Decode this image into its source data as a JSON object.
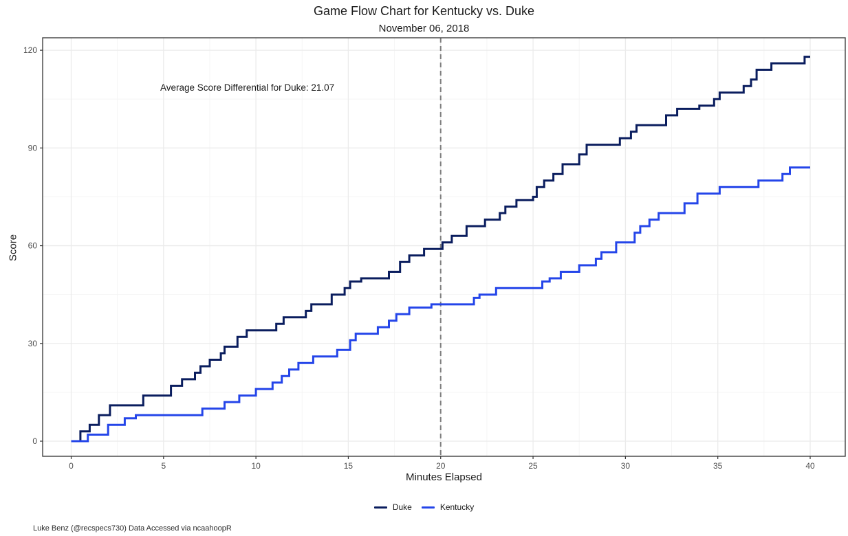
{
  "caption": "Luke Benz (@recspecs730) Data Accessed via ncaahoopR",
  "chart_data": {
    "type": "line",
    "subtype": "step",
    "title": "Game Flow Chart for Kentucky vs. Duke",
    "subtitle": "November 06, 2018",
    "xlabel": "Minutes Elapsed",
    "ylabel": "Score",
    "xlim": [
      0,
      40
    ],
    "ylim": [
      0,
      120
    ],
    "x_end": 40,
    "grid": "on",
    "legend_position": "bottom",
    "axes": {
      "x_major": [
        0,
        5,
        10,
        15,
        20,
        25,
        30,
        35,
        40
      ],
      "x_minor": [
        2.5,
        7.5,
        12.5,
        17.5,
        22.5,
        27.5,
        32.5,
        37.5
      ],
      "y_major": [
        0,
        30,
        60,
        90,
        120
      ],
      "y_minor": [
        15,
        45,
        75,
        105
      ]
    },
    "halftime_line": {
      "x": 20,
      "style": "dashed"
    },
    "annotation": {
      "text": "Average Score Differential for Duke: 21.07"
    },
    "colors": {
      "duke": "#0A1D5E",
      "kentucky": "#2445E9",
      "grid_major": "#EBEBEB",
      "grid_minor": "#F5F5F5",
      "panel_border": "#404040",
      "tick": "#333333",
      "tick_label": "#4D4D4D",
      "halftime_dash": "#7F7F7F",
      "background": "#FFFFFF"
    },
    "series": [
      {
        "name": "Duke",
        "color": "#0A1D5E",
        "final_score": 118,
        "halftime_score": 59,
        "points": [
          [
            0,
            0
          ],
          [
            0.5,
            3
          ],
          [
            1.0,
            5
          ],
          [
            1.5,
            8
          ],
          [
            2.1,
            11
          ],
          [
            3.9,
            14
          ],
          [
            5.4,
            17
          ],
          [
            6.0,
            19
          ],
          [
            6.7,
            21
          ],
          [
            7.0,
            23
          ],
          [
            7.5,
            25
          ],
          [
            8.1,
            27
          ],
          [
            8.3,
            29
          ],
          [
            9.0,
            32
          ],
          [
            9.5,
            34
          ],
          [
            11.1,
            36
          ],
          [
            11.5,
            38
          ],
          [
            12.7,
            40
          ],
          [
            13.0,
            42
          ],
          [
            14.1,
            45
          ],
          [
            14.8,
            47
          ],
          [
            15.1,
            49
          ],
          [
            15.7,
            50
          ],
          [
            17.2,
            52
          ],
          [
            17.8,
            55
          ],
          [
            18.3,
            57
          ],
          [
            19.1,
            59
          ],
          [
            20.1,
            61
          ],
          [
            20.6,
            63
          ],
          [
            21.4,
            66
          ],
          [
            22.4,
            68
          ],
          [
            23.2,
            70
          ],
          [
            23.5,
            72
          ],
          [
            24.1,
            74
          ],
          [
            25.0,
            75
          ],
          [
            25.2,
            78
          ],
          [
            25.6,
            80
          ],
          [
            26.1,
            82
          ],
          [
            26.6,
            85
          ],
          [
            27.5,
            88
          ],
          [
            27.9,
            91
          ],
          [
            29.7,
            93
          ],
          [
            30.3,
            95
          ],
          [
            30.6,
            97
          ],
          [
            32.2,
            100
          ],
          [
            32.8,
            102
          ],
          [
            34.0,
            103
          ],
          [
            34.8,
            105
          ],
          [
            35.1,
            107
          ],
          [
            36.4,
            109
          ],
          [
            36.8,
            111
          ],
          [
            37.1,
            114
          ],
          [
            37.9,
            116
          ],
          [
            39.7,
            118
          ]
        ]
      },
      {
        "name": "Kentucky",
        "color": "#2445E9",
        "final_score": 84,
        "halftime_score": 42,
        "points": [
          [
            0,
            0
          ],
          [
            0.9,
            2
          ],
          [
            2.0,
            5
          ],
          [
            2.9,
            7
          ],
          [
            3.5,
            8
          ],
          [
            7.1,
            10
          ],
          [
            8.3,
            12
          ],
          [
            9.1,
            14
          ],
          [
            10.0,
            16
          ],
          [
            10.9,
            18
          ],
          [
            11.4,
            20
          ],
          [
            11.8,
            22
          ],
          [
            12.3,
            24
          ],
          [
            13.1,
            26
          ],
          [
            14.4,
            28
          ],
          [
            15.1,
            31
          ],
          [
            15.4,
            33
          ],
          [
            16.6,
            35
          ],
          [
            17.2,
            37
          ],
          [
            17.6,
            39
          ],
          [
            18.3,
            41
          ],
          [
            19.5,
            42
          ],
          [
            21.8,
            44
          ],
          [
            22.1,
            45
          ],
          [
            23.0,
            47
          ],
          [
            25.5,
            49
          ],
          [
            25.9,
            50
          ],
          [
            26.5,
            52
          ],
          [
            27.5,
            54
          ],
          [
            28.4,
            56
          ],
          [
            28.7,
            58
          ],
          [
            29.5,
            61
          ],
          [
            30.5,
            64
          ],
          [
            30.8,
            66
          ],
          [
            31.3,
            68
          ],
          [
            31.8,
            70
          ],
          [
            33.2,
            73
          ],
          [
            33.9,
            76
          ],
          [
            35.1,
            78
          ],
          [
            37.2,
            80
          ],
          [
            38.5,
            82
          ],
          [
            38.9,
            84
          ]
        ]
      }
    ]
  }
}
